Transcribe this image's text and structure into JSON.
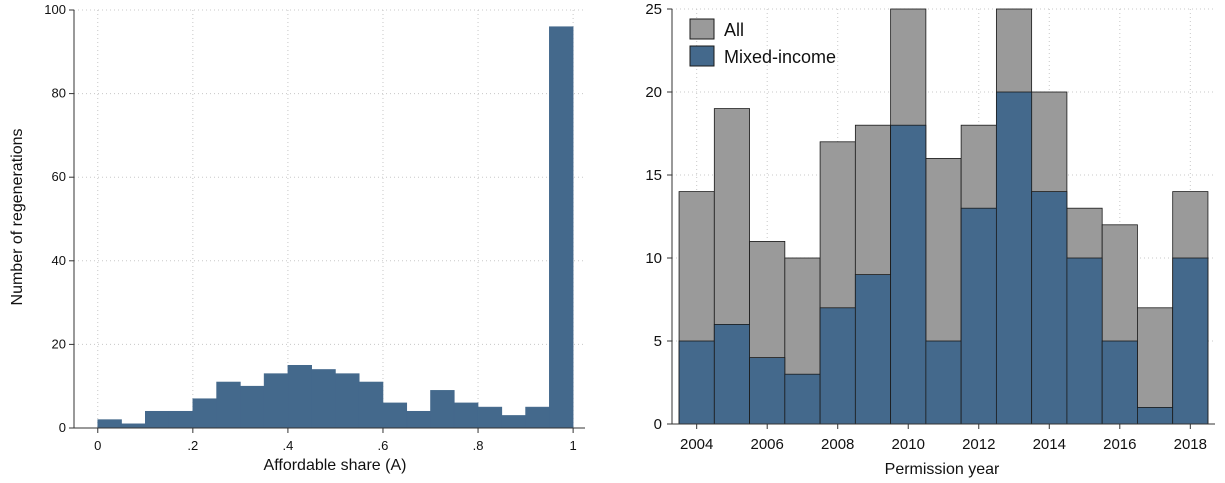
{
  "colors": {
    "bar_blue": "#44698c",
    "bar_gray": "#9a9a9a",
    "bar_outline": "#1a1a1a",
    "grid": "#c8c8c8",
    "axis": "#333333"
  },
  "chart_data": [
    {
      "type": "bar",
      "title": "",
      "xlabel": "Affordable share (A)",
      "ylabel": "Number of regenerations",
      "xlim": [
        -0.05,
        1.025
      ],
      "ylim": [
        0,
        100
      ],
      "x_ticks": [
        0,
        0.2,
        0.4,
        0.6,
        0.8,
        1
      ],
      "x_tick_labels": [
        "0",
        ".2",
        ".4",
        ".6",
        ".8",
        "1"
      ],
      "y_ticks": [
        0,
        20,
        40,
        60,
        80,
        100
      ],
      "y_tick_labels": [
        "0",
        "20",
        "40",
        "60",
        "80",
        "100"
      ],
      "grid": true,
      "bin_width": 0.05,
      "bin_starts": [
        0,
        0.05,
        0.1,
        0.15,
        0.2,
        0.25,
        0.3,
        0.35,
        0.4,
        0.45,
        0.5,
        0.55,
        0.6,
        0.65,
        0.7,
        0.75,
        0.8,
        0.85,
        0.9,
        0.95
      ],
      "values": [
        2,
        1,
        4,
        4,
        7,
        11,
        10,
        13,
        15,
        14,
        13,
        11,
        6,
        4,
        9,
        6,
        5,
        3,
        5,
        96
      ]
    },
    {
      "type": "bar",
      "title": "",
      "xlabel": "Permission year",
      "ylabel": "",
      "xlim": [
        2003.3,
        2018.7
      ],
      "ylim": [
        0,
        25
      ],
      "x_ticks": [
        2004,
        2006,
        2008,
        2010,
        2012,
        2014,
        2016,
        2018
      ],
      "x_tick_labels": [
        "2004",
        "2006",
        "2008",
        "2010",
        "2012",
        "2014",
        "2016",
        "2018"
      ],
      "y_ticks": [
        0,
        5,
        10,
        15,
        20,
        25
      ],
      "y_tick_labels": [
        "0",
        "5",
        "10",
        "15",
        "20",
        "25"
      ],
      "grid": true,
      "legend_position": "top-left",
      "categories": [
        2004,
        2005,
        2006,
        2007,
        2008,
        2009,
        2010,
        2011,
        2012,
        2013,
        2014,
        2015,
        2016,
        2017,
        2018
      ],
      "series": [
        {
          "name": "All",
          "values": [
            14,
            19,
            11,
            10,
            17,
            18,
            25,
            16,
            18,
            25,
            20,
            13,
            12,
            7,
            14
          ]
        },
        {
          "name": "Mixed-income",
          "values": [
            5,
            6,
            4,
            3,
            7,
            9,
            18,
            5,
            13,
            20,
            14,
            10,
            5,
            1,
            10
          ]
        }
      ]
    }
  ]
}
